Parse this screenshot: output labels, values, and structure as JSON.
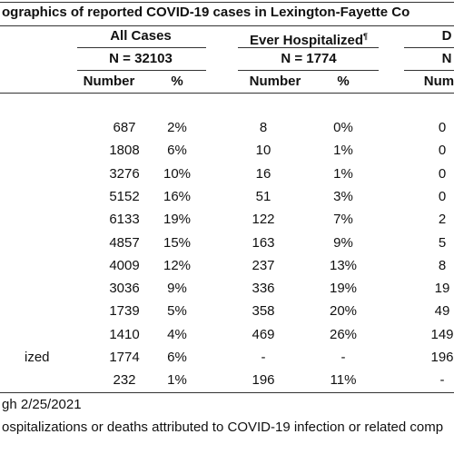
{
  "header": {
    "title": "ographics of reported COVID-19 cases in Lexington-Fayette Co",
    "groups": [
      {
        "label": "All Cases",
        "n": "N = 32103"
      },
      {
        "label": "Ever Hospitalized",
        "mark": "¶",
        "n": "N = 1774"
      },
      {
        "label": "D",
        "n": "N"
      }
    ],
    "columns": [
      "Number",
      "%",
      "Number",
      "%",
      "Numb"
    ]
  },
  "table": {
    "rows": [
      {
        "cells": [
          "687",
          "2%",
          "8",
          "0%",
          "0"
        ]
      },
      {
        "cells": [
          "1808",
          "6%",
          "10",
          "1%",
          "0"
        ]
      },
      {
        "cells": [
          "3276",
          "10%",
          "16",
          "1%",
          "0"
        ]
      },
      {
        "cells": [
          "5152",
          "16%",
          "51",
          "3%",
          "0"
        ]
      },
      {
        "cells": [
          "6133",
          "19%",
          "122",
          "7%",
          "2"
        ]
      },
      {
        "cells": [
          "4857",
          "15%",
          "163",
          "9%",
          "5"
        ]
      },
      {
        "cells": [
          "4009",
          "12%",
          "237",
          "13%",
          "8"
        ]
      },
      {
        "cells": [
          "3036",
          "9%",
          "336",
          "19%",
          "19"
        ]
      },
      {
        "cells": [
          "1739",
          "5%",
          "358",
          "20%",
          "49"
        ]
      },
      {
        "cells": [
          "1410",
          "4%",
          "469",
          "26%",
          "149"
        ]
      },
      {
        "label": "ized",
        "cells": [
          "1774",
          "6%",
          "-",
          "-",
          "196"
        ]
      },
      {
        "cells": [
          "232",
          "1%",
          "196",
          "11%",
          "-"
        ]
      }
    ]
  },
  "footnotes": [
    "gh 2/25/2021",
    "ospitalizations or deaths attributed to COVID-19 infection or related comp"
  ]
}
